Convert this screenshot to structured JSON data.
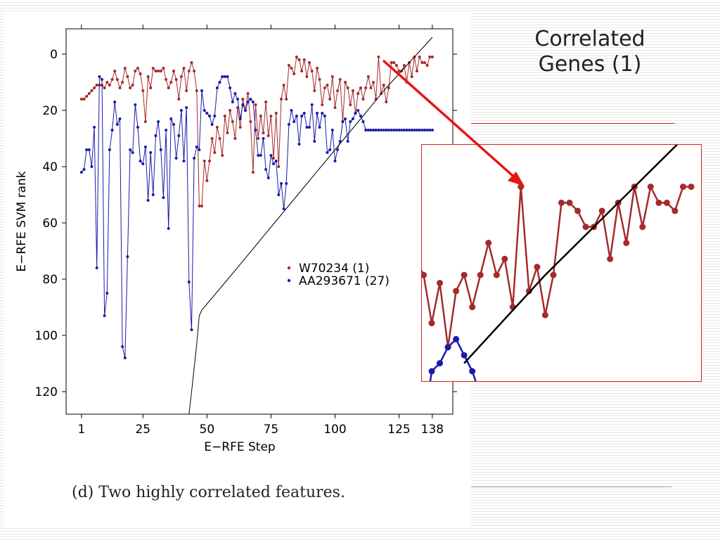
{
  "slide": {
    "title_lines": [
      "Correlated",
      "Genes (1)"
    ],
    "caption": "(d) Two highly correlated features.",
    "accent_color": "#cc2222"
  },
  "chart_data": {
    "type": "line",
    "title": "",
    "xlabel": "E−RFE Step",
    "ylabel": "E−RFE SVM rank",
    "xlim": [
      -5,
      146
    ],
    "ylim": [
      128,
      -9
    ],
    "y_inverted": true,
    "x_ticks": [
      1,
      25,
      50,
      75,
      100,
      125,
      138
    ],
    "y_ticks": [
      0,
      20,
      40,
      60,
      80,
      100,
      120
    ],
    "grid": false,
    "legend_position": "center-right",
    "series": [
      {
        "name": "W70234 (1)",
        "color": "#a52a2a",
        "points": [
          [
            1,
            16
          ],
          [
            2,
            16
          ],
          [
            3,
            15
          ],
          [
            4,
            14
          ],
          [
            5,
            13
          ],
          [
            6,
            12
          ],
          [
            7,
            11
          ],
          [
            8,
            11
          ],
          [
            9,
            11
          ],
          [
            10,
            12
          ],
          [
            11,
            10
          ],
          [
            12,
            11
          ],
          [
            13,
            9
          ],
          [
            14,
            6
          ],
          [
            15,
            9
          ],
          [
            16,
            12
          ],
          [
            17,
            10
          ],
          [
            18,
            5
          ],
          [
            19,
            8
          ],
          [
            20,
            12
          ],
          [
            21,
            11
          ],
          [
            22,
            6
          ],
          [
            23,
            5
          ],
          [
            24,
            7
          ],
          [
            25,
            13
          ],
          [
            26,
            24
          ],
          [
            27,
            8
          ],
          [
            28,
            12
          ],
          [
            29,
            5
          ],
          [
            30,
            6
          ],
          [
            31,
            6
          ],
          [
            32,
            6
          ],
          [
            33,
            5
          ],
          [
            34,
            9
          ],
          [
            35,
            12
          ],
          [
            36,
            10
          ],
          [
            37,
            6
          ],
          [
            38,
            9
          ],
          [
            39,
            16
          ],
          [
            40,
            8
          ],
          [
            41,
            5
          ],
          [
            42,
            13
          ],
          [
            43,
            6
          ],
          [
            44,
            3
          ],
          [
            45,
            6
          ],
          [
            46,
            13
          ],
          [
            47,
            54
          ],
          [
            48,
            54
          ],
          [
            49,
            38
          ],
          [
            50,
            45
          ],
          [
            51,
            38
          ],
          [
            52,
            30
          ],
          [
            53,
            35
          ],
          [
            54,
            26
          ],
          [
            55,
            30
          ],
          [
            56,
            36
          ],
          [
            57,
            22
          ],
          [
            58,
            28
          ],
          [
            59,
            20
          ],
          [
            60,
            24
          ],
          [
            61,
            30
          ],
          [
            62,
            19
          ],
          [
            63,
            26
          ],
          [
            64,
            16
          ],
          [
            65,
            20
          ],
          [
            66,
            14
          ],
          [
            67,
            24
          ],
          [
            68,
            42
          ],
          [
            69,
            18
          ],
          [
            70,
            30
          ],
          [
            71,
            22
          ],
          [
            72,
            28
          ],
          [
            73,
            17
          ],
          [
            74,
            29
          ],
          [
            75,
            22
          ],
          [
            76,
            37
          ],
          [
            77,
            21
          ],
          [
            78,
            40
          ],
          [
            79,
            16
          ],
          [
            80,
            11
          ],
          [
            81,
            16
          ],
          [
            82,
            4
          ],
          [
            83,
            5
          ],
          [
            84,
            7
          ],
          [
            85,
            1
          ],
          [
            86,
            2
          ],
          [
            87,
            6
          ],
          [
            88,
            2
          ],
          [
            89,
            8
          ],
          [
            90,
            3
          ],
          [
            91,
            6
          ],
          [
            92,
            13
          ],
          [
            93,
            5
          ],
          [
            94,
            9
          ],
          [
            95,
            18
          ],
          [
            96,
            12
          ],
          [
            97,
            11
          ],
          [
            98,
            16
          ],
          [
            99,
            8
          ],
          [
            100,
            19
          ],
          [
            101,
            13
          ],
          [
            102,
            9
          ],
          [
            103,
            24
          ],
          [
            104,
            10
          ],
          [
            105,
            12
          ],
          [
            106,
            18
          ],
          [
            107,
            13
          ],
          [
            108,
            21
          ],
          [
            109,
            14
          ],
          [
            110,
            12
          ],
          [
            111,
            16
          ],
          [
            112,
            12
          ],
          [
            113,
            8
          ],
          [
            114,
            12
          ],
          [
            115,
            10
          ],
          [
            116,
            16
          ],
          [
            117,
            1
          ],
          [
            118,
            14
          ],
          [
            119,
            11
          ],
          [
            120,
            17
          ],
          [
            121,
            12
          ],
          [
            122,
            3
          ],
          [
            123,
            3
          ],
          [
            124,
            4
          ],
          [
            125,
            6
          ],
          [
            126,
            6
          ],
          [
            127,
            4
          ],
          [
            128,
            10
          ],
          [
            129,
            3
          ],
          [
            130,
            8
          ],
          [
            131,
            1
          ],
          [
            132,
            6
          ],
          [
            133,
            1
          ],
          [
            134,
            3
          ],
          [
            135,
            3
          ],
          [
            136,
            4
          ],
          [
            137,
            1
          ],
          [
            138,
            1
          ]
        ]
      },
      {
        "name": "AA293671 (27)",
        "color": "#1a1aaa",
        "points": [
          [
            1,
            42
          ],
          [
            2,
            41
          ],
          [
            3,
            34
          ],
          [
            4,
            34
          ],
          [
            5,
            40
          ],
          [
            6,
            26
          ],
          [
            7,
            76
          ],
          [
            8,
            8
          ],
          [
            9,
            9
          ],
          [
            10,
            93
          ],
          [
            11,
            85
          ],
          [
            12,
            34
          ],
          [
            13,
            27
          ],
          [
            14,
            17
          ],
          [
            15,
            25
          ],
          [
            16,
            23
          ],
          [
            17,
            104
          ],
          [
            18,
            108
          ],
          [
            19,
            72
          ],
          [
            20,
            34
          ],
          [
            21,
            35
          ],
          [
            22,
            18
          ],
          [
            23,
            26
          ],
          [
            24,
            38
          ],
          [
            25,
            39
          ],
          [
            26,
            33
          ],
          [
            27,
            52
          ],
          [
            28,
            35
          ],
          [
            29,
            50
          ],
          [
            30,
            29
          ],
          [
            31,
            24
          ],
          [
            32,
            34
          ],
          [
            33,
            51
          ],
          [
            34,
            27
          ],
          [
            35,
            62
          ],
          [
            36,
            23
          ],
          [
            37,
            25
          ],
          [
            38,
            37
          ],
          [
            39,
            29
          ],
          [
            40,
            20
          ],
          [
            41,
            38
          ],
          [
            42,
            19
          ],
          [
            43,
            81
          ],
          [
            44,
            98
          ],
          [
            45,
            37
          ],
          [
            46,
            33
          ],
          [
            47,
            34
          ],
          [
            48,
            13
          ],
          [
            49,
            20
          ],
          [
            50,
            21
          ],
          [
            51,
            22
          ],
          [
            52,
            25
          ],
          [
            53,
            22
          ],
          [
            54,
            12
          ],
          [
            55,
            10
          ],
          [
            56,
            8
          ],
          [
            57,
            8
          ],
          [
            58,
            8
          ],
          [
            59,
            12
          ],
          [
            60,
            17
          ],
          [
            61,
            14
          ],
          [
            62,
            16
          ],
          [
            63,
            23
          ],
          [
            64,
            18
          ],
          [
            65,
            20
          ],
          [
            66,
            17
          ],
          [
            67,
            16
          ],
          [
            68,
            17
          ],
          [
            69,
            27
          ],
          [
            70,
            36
          ],
          [
            71,
            36
          ],
          [
            72,
            30
          ],
          [
            73,
            41
          ],
          [
            74,
            44
          ],
          [
            75,
            36
          ],
          [
            76,
            39
          ],
          [
            77,
            38
          ],
          [
            78,
            50
          ],
          [
            79,
            46
          ],
          [
            80,
            55
          ],
          [
            81,
            46
          ],
          [
            82,
            25
          ],
          [
            83,
            20
          ],
          [
            84,
            24
          ],
          [
            85,
            22
          ],
          [
            86,
            32
          ],
          [
            87,
            22
          ],
          [
            88,
            21
          ],
          [
            89,
            26
          ],
          [
            90,
            26
          ],
          [
            91,
            18
          ],
          [
            92,
            31
          ],
          [
            93,
            21
          ],
          [
            94,
            26
          ],
          [
            95,
            21
          ],
          [
            96,
            22
          ],
          [
            97,
            35
          ],
          [
            98,
            34
          ],
          [
            99,
            27
          ],
          [
            100,
            38
          ],
          [
            101,
            34
          ],
          [
            102,
            31
          ],
          [
            103,
            24
          ],
          [
            104,
            23
          ],
          [
            105,
            31
          ],
          [
            106,
            24
          ],
          [
            107,
            23
          ],
          [
            108,
            21
          ],
          [
            109,
            20
          ],
          [
            110,
            22
          ],
          [
            111,
            24
          ],
          [
            112,
            27
          ],
          [
            113,
            27
          ],
          [
            114,
            27
          ],
          [
            115,
            27
          ],
          [
            116,
            27
          ],
          [
            117,
            27
          ],
          [
            118,
            27
          ],
          [
            119,
            27
          ],
          [
            120,
            27
          ],
          [
            121,
            27
          ],
          [
            122,
            27
          ],
          [
            123,
            27
          ],
          [
            124,
            27
          ],
          [
            125,
            27
          ],
          [
            126,
            27
          ],
          [
            127,
            27
          ],
          [
            128,
            27
          ],
          [
            129,
            27
          ],
          [
            130,
            27
          ],
          [
            131,
            27
          ],
          [
            132,
            27
          ],
          [
            133,
            27
          ],
          [
            134,
            27
          ],
          [
            135,
            27
          ],
          [
            136,
            27
          ],
          [
            137,
            27
          ],
          [
            138,
            27
          ]
        ]
      },
      {
        "name": "",
        "color": "#000000",
        "points": [
          [
            43,
            128
          ],
          [
            44,
            120
          ],
          [
            46,
            103
          ],
          [
            47,
            93
          ],
          [
            48,
            91
          ],
          [
            60,
            78
          ],
          [
            70,
            67
          ],
          [
            80,
            56
          ],
          [
            90,
            45
          ],
          [
            100,
            34
          ],
          [
            110,
            23
          ],
          [
            120,
            12
          ],
          [
            130,
            2
          ],
          [
            138,
            -6
          ]
        ]
      }
    ]
  },
  "inset": {
    "description_shown": false,
    "xlim": [
      106,
      138
    ],
    "ylim": [
      24,
      -3
    ],
    "border_color": "#d62020"
  }
}
